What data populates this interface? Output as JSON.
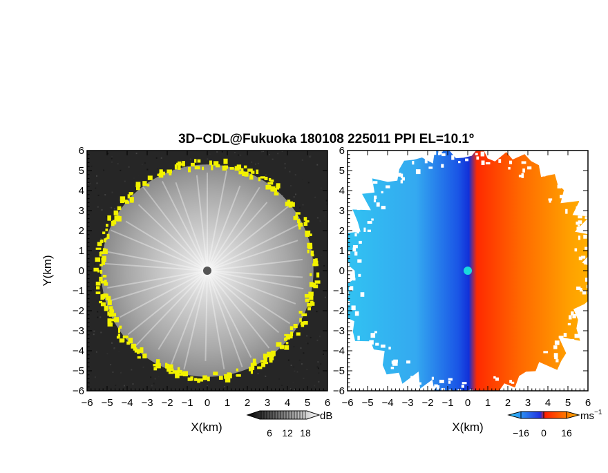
{
  "title": "3D−CDL@Fukuoka 180108 225011 PPI EL=10.1º",
  "chart_data": [
    {
      "type": "heatmap",
      "quantity": "reflectivity / SNR",
      "xlabel": "X(km)",
      "ylabel": "Y(km)",
      "xlim": [
        -6,
        6
      ],
      "ylim": [
        -6,
        6
      ],
      "xticks": [
        "−6",
        "−5",
        "−4",
        "−3",
        "−2",
        "−1",
        "0",
        "1",
        "2",
        "3",
        "4",
        "5",
        "6"
      ],
      "yticks": [
        "−6",
        "−5",
        "−4",
        "−3",
        "−2",
        "−1",
        "0",
        "1",
        "2",
        "3",
        "4",
        "5",
        "6"
      ],
      "colorbar": {
        "ticks": [
          "6",
          "12",
          "18"
        ],
        "unit": "dB",
        "colormap": "grayscale"
      },
      "echo_radius_km": 5.3,
      "edge_color": "#f2f200"
    },
    {
      "type": "heatmap",
      "quantity": "Doppler velocity",
      "xlabel": "X(km)",
      "xlim": [
        -6,
        6
      ],
      "ylim": [
        -6,
        6
      ],
      "xticks": [
        "−6",
        "−5",
        "−4",
        "−3",
        "−2",
        "−1",
        "0",
        "1",
        "2",
        "3",
        "4",
        "5",
        "6"
      ],
      "yticks": [
        "−6",
        "−5",
        "−4",
        "−3",
        "−2",
        "−1",
        "0",
        "1",
        "2",
        "3",
        "4",
        "5",
        "6"
      ],
      "colorbar": {
        "ticks": [
          "−16",
          "0",
          "16"
        ],
        "unit": "ms",
        "unit_exp": "−1",
        "colormap": "blue-red diverging"
      },
      "radar_marker_color": "#19d9dc"
    }
  ]
}
